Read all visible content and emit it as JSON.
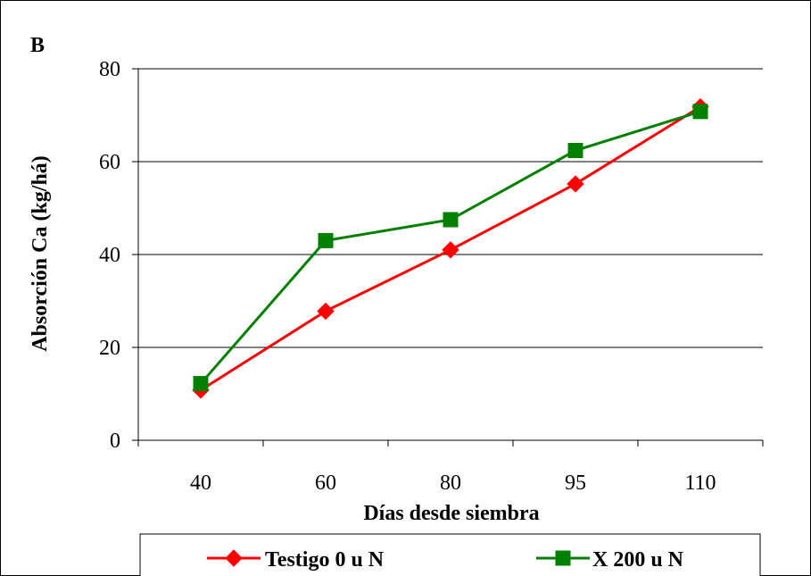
{
  "panel_label": "B",
  "chart_data": {
    "type": "line",
    "categories": [
      "40",
      "60",
      "80",
      "95",
      "110"
    ],
    "xlabel": "Días desde siembra",
    "ylabel": "Absorción Ca (kg/há)",
    "ylim": [
      0,
      80
    ],
    "yticks": [
      "0",
      "20",
      "40",
      "60",
      "80"
    ],
    "grid": true,
    "legend_position": "bottom",
    "series": [
      {
        "name": "Testigo 0 u N",
        "color": "#ff0000",
        "marker": "diamond",
        "values": [
          10.8,
          27.8,
          41.0,
          55.2,
          71.8
        ]
      },
      {
        "name": "X 200 u N",
        "color": "#008000",
        "marker": "square",
        "values": [
          12.2,
          43.0,
          47.5,
          62.4,
          70.8
        ]
      }
    ]
  }
}
